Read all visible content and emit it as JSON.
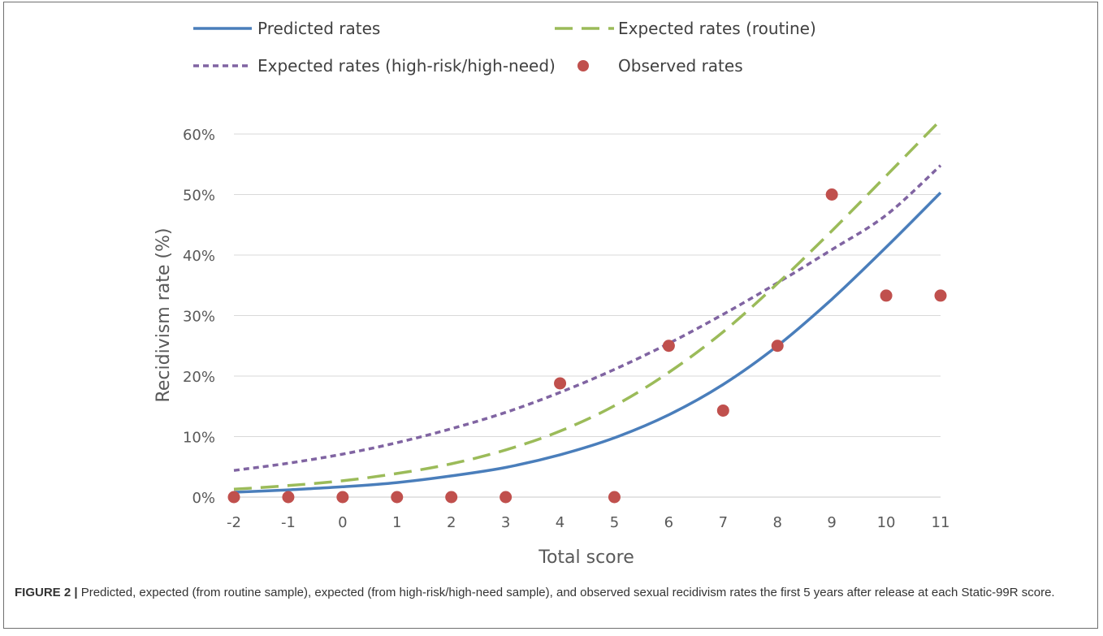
{
  "caption": {
    "label": "FIGURE 2 |",
    "text": "Predicted, expected (from routine sample), expected (from high-risk/high-need sample), and observed sexual recidivism rates the first 5 years after release at each Static-99R score."
  },
  "chart_data": {
    "type": "line",
    "title": "",
    "xlabel": "Total score",
    "ylabel": "Recidivism rate (%)",
    "x": [
      -2,
      -1,
      0,
      1,
      2,
      3,
      4,
      5,
      6,
      7,
      8,
      9,
      10,
      11
    ],
    "xlim": [
      -2,
      11
    ],
    "ylim": [
      0,
      60
    ],
    "yticks": [
      0,
      10,
      20,
      30,
      40,
      50,
      60
    ],
    "ytick_labels": [
      "0%",
      "10%",
      "20%",
      "30%",
      "40%",
      "50%",
      "60%"
    ],
    "xtick_labels": [
      "-2",
      "-1",
      "0",
      "1",
      "2",
      "3",
      "4",
      "5",
      "6",
      "7",
      "8",
      "9",
      "10",
      "11"
    ],
    "grid": "horizontal",
    "legend": "top",
    "series": [
      {
        "name": "Predicted rates",
        "style": "solid-line",
        "color": "#4a7ebb",
        "values": [
          0.8,
          1.2,
          1.7,
          2.4,
          3.5,
          4.9,
          7.0,
          9.8,
          13.6,
          18.6,
          25.0,
          32.7,
          41.3,
          50.3
        ]
      },
      {
        "name": "Expected rates (routine)",
        "style": "long-dash",
        "color": "#9bbb59",
        "values": [
          1.3,
          1.9,
          2.7,
          3.9,
          5.5,
          7.8,
          10.9,
          15.1,
          20.6,
          27.3,
          35.3,
          44.0,
          53.1,
          62.3
        ]
      },
      {
        "name": "Expected rates (high-risk/high-need)",
        "style": "short-dash",
        "color": "#8064a2",
        "values": [
          4.4,
          5.6,
          7.1,
          9.0,
          11.3,
          14.0,
          17.3,
          21.1,
          25.4,
          30.2,
          35.4,
          40.9,
          46.6,
          54.8
        ]
      },
      {
        "name": "Observed rates",
        "style": "markers",
        "color": "#c0504d",
        "values": [
          0,
          0,
          0,
          0,
          0,
          0,
          18.8,
          0,
          25.0,
          14.3,
          25.0,
          50.0,
          33.3,
          33.3
        ]
      }
    ]
  }
}
